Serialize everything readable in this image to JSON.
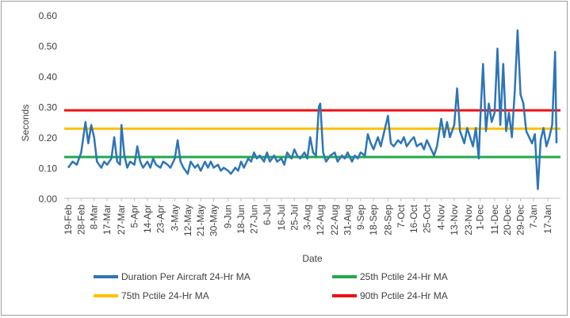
{
  "chart_data": {
    "type": "line",
    "xlabel": "Date",
    "ylabel": "Seconds",
    "ylim": [
      0,
      0.6
    ],
    "yticks": [
      "0.00",
      "0.10",
      "0.20",
      "0.30",
      "0.40",
      "0.50",
      "0.60"
    ],
    "xticks": [
      "19-Feb",
      "28-Feb",
      "8-Mar",
      "17-Mar",
      "27-Mar",
      "5-Apr",
      "14-Apr",
      "23-Apr",
      "3-May",
      "12-May",
      "21-May",
      "30-May",
      "9-Jun",
      "18-Jun",
      "27-Jun",
      "6-Jul",
      "16-Jul",
      "25-Jul",
      "3-Aug",
      "12-Aug",
      "22-Aug",
      "31-Aug",
      "9-Sep",
      "18-Sep",
      "28-Sep",
      "7-Oct",
      "16-Oct",
      "25-Oct",
      "4-Nov",
      "13-Nov",
      "23-Nov",
      "1-Dec",
      "11-Dec",
      "20-Dec",
      "29-Dec",
      "7-Jan",
      "17-Jan"
    ],
    "grid": false,
    "legend_position": "bottom",
    "series": [
      {
        "name": "Duration Per Aircraft 24-Hr MA",
        "color": "#2e75b6",
        "points": [
          [
            "19-Feb",
            0.1
          ],
          [
            "22-Feb",
            0.12
          ],
          [
            "25-Feb",
            0.11
          ],
          [
            "28-Feb",
            0.15
          ],
          [
            "2-Mar",
            0.25
          ],
          [
            "4-Mar",
            0.18
          ],
          [
            "6-Mar",
            0.24
          ],
          [
            "8-Mar",
            0.2
          ],
          [
            "10-Mar",
            0.12
          ],
          [
            "13-Mar",
            0.1
          ],
          [
            "15-Mar",
            0.12
          ],
          [
            "17-Mar",
            0.11
          ],
          [
            "20-Mar",
            0.13
          ],
          [
            "22-Mar",
            0.2
          ],
          [
            "24-Mar",
            0.12
          ],
          [
            "26-Mar",
            0.11
          ],
          [
            "27-Mar",
            0.24
          ],
          [
            "29-Mar",
            0.14
          ],
          [
            "31-Mar",
            0.1
          ],
          [
            "2-Apr",
            0.12
          ],
          [
            "5-Apr",
            0.11
          ],
          [
            "7-Apr",
            0.17
          ],
          [
            "9-Apr",
            0.12
          ],
          [
            "11-Apr",
            0.1
          ],
          [
            "14-Apr",
            0.12
          ],
          [
            "16-Apr",
            0.1
          ],
          [
            "18-Apr",
            0.13
          ],
          [
            "20-Apr",
            0.11
          ],
          [
            "23-Apr",
            0.1
          ],
          [
            "25-Apr",
            0.12
          ],
          [
            "28-Apr",
            0.11
          ],
          [
            "30-Apr",
            0.1
          ],
          [
            "3-May",
            0.13
          ],
          [
            "5-May",
            0.19
          ],
          [
            "7-May",
            0.12
          ],
          [
            "9-May",
            0.1
          ],
          [
            "12-May",
            0.08
          ],
          [
            "14-May",
            0.12
          ],
          [
            "17-May",
            0.1
          ],
          [
            "19-May",
            0.11
          ],
          [
            "21-May",
            0.09
          ],
          [
            "24-May",
            0.12
          ],
          [
            "26-May",
            0.1
          ],
          [
            "28-May",
            0.12
          ],
          [
            "30-May",
            0.1
          ],
          [
            "2-Jun",
            0.11
          ],
          [
            "4-Jun",
            0.09
          ],
          [
            "6-Jun",
            0.1
          ],
          [
            "9-Jun",
            0.09
          ],
          [
            "11-Jun",
            0.08
          ],
          [
            "14-Jun",
            0.1
          ],
          [
            "16-Jun",
            0.09
          ],
          [
            "18-Jun",
            0.12
          ],
          [
            "20-Jun",
            0.1
          ],
          [
            "23-Jun",
            0.13
          ],
          [
            "25-Jun",
            0.12
          ],
          [
            "27-Jun",
            0.15
          ],
          [
            "29-Jun",
            0.13
          ],
          [
            "1-Jul",
            0.14
          ],
          [
            "4-Jul",
            0.12
          ],
          [
            "6-Jul",
            0.15
          ],
          [
            "8-Jul",
            0.12
          ],
          [
            "11-Jul",
            0.14
          ],
          [
            "13-Jul",
            0.12
          ],
          [
            "16-Jul",
            0.13
          ],
          [
            "18-Jul",
            0.11
          ],
          [
            "20-Jul",
            0.15
          ],
          [
            "23-Jul",
            0.13
          ],
          [
            "25-Jul",
            0.16
          ],
          [
            "27-Jul",
            0.14
          ],
          [
            "29-Jul",
            0.13
          ],
          [
            "1-Aug",
            0.15
          ],
          [
            "3-Aug",
            0.13
          ],
          [
            "5-Aug",
            0.2
          ],
          [
            "7-Aug",
            0.15
          ],
          [
            "9-Aug",
            0.14
          ],
          [
            "11-Aug",
            0.3
          ],
          [
            "12-Aug",
            0.31
          ],
          [
            "14-Aug",
            0.15
          ],
          [
            "16-Aug",
            0.12
          ],
          [
            "19-Aug",
            0.14
          ],
          [
            "22-Aug",
            0.15
          ],
          [
            "24-Aug",
            0.12
          ],
          [
            "27-Aug",
            0.14
          ],
          [
            "29-Aug",
            0.13
          ],
          [
            "31-Aug",
            0.15
          ],
          [
            "3-Sep",
            0.12
          ],
          [
            "5-Sep",
            0.14
          ],
          [
            "7-Sep",
            0.13
          ],
          [
            "9-Sep",
            0.15
          ],
          [
            "12-Sep",
            0.14
          ],
          [
            "14-Sep",
            0.21
          ],
          [
            "16-Sep",
            0.18
          ],
          [
            "18-Sep",
            0.16
          ],
          [
            "21-Sep",
            0.2
          ],
          [
            "23-Sep",
            0.17
          ],
          [
            "25-Sep",
            0.21
          ],
          [
            "28-Sep",
            0.27
          ],
          [
            "30-Sep",
            0.18
          ],
          [
            "2-Oct",
            0.17
          ],
          [
            "5-Oct",
            0.19
          ],
          [
            "7-Oct",
            0.18
          ],
          [
            "9-Oct",
            0.2
          ],
          [
            "11-Oct",
            0.17
          ],
          [
            "14-Oct",
            0.19
          ],
          [
            "16-Oct",
            0.2
          ],
          [
            "18-Oct",
            0.17
          ],
          [
            "21-Oct",
            0.18
          ],
          [
            "23-Oct",
            0.16
          ],
          [
            "25-Oct",
            0.19
          ],
          [
            "27-Oct",
            0.17
          ],
          [
            "30-Oct",
            0.14
          ],
          [
            "1-Nov",
            0.17
          ],
          [
            "4-Nov",
            0.26
          ],
          [
            "6-Nov",
            0.2
          ],
          [
            "8-Nov",
            0.25
          ],
          [
            "10-Nov",
            0.2
          ],
          [
            "13-Nov",
            0.24
          ],
          [
            "15-Nov",
            0.36
          ],
          [
            "17-Nov",
            0.22
          ],
          [
            "20-Nov",
            0.18
          ],
          [
            "22-Nov",
            0.23
          ],
          [
            "24-Nov",
            0.2
          ],
          [
            "26-Nov",
            0.17
          ],
          [
            "28-Nov",
            0.23
          ],
          [
            "30-Nov",
            0.13
          ],
          [
            "1-Dec",
            0.25
          ],
          [
            "3-Dec",
            0.44
          ],
          [
            "5-Dec",
            0.22
          ],
          [
            "7-Dec",
            0.31
          ],
          [
            "9-Dec",
            0.25
          ],
          [
            "11-Dec",
            0.28
          ],
          [
            "13-Dec",
            0.49
          ],
          [
            "15-Dec",
            0.24
          ],
          [
            "17-Dec",
            0.44
          ],
          [
            "19-Dec",
            0.22
          ],
          [
            "21-Dec",
            0.28
          ],
          [
            "23-Dec",
            0.2
          ],
          [
            "25-Dec",
            0.35
          ],
          [
            "27-Dec",
            0.55
          ],
          [
            "29-Dec",
            0.34
          ],
          [
            "31-Dec",
            0.31
          ],
          [
            "2-Jan",
            0.22
          ],
          [
            "4-Jan",
            0.2
          ],
          [
            "6-Jan",
            0.18
          ],
          [
            "8-Jan",
            0.21
          ],
          [
            "10-Jan",
            0.03
          ],
          [
            "12-Jan",
            0.19
          ],
          [
            "14-Jan",
            0.23
          ],
          [
            "16-Jan",
            0.17
          ],
          [
            "18-Jan",
            0.2
          ],
          [
            "20-Jan",
            0.24
          ],
          [
            "22-Jan",
            0.48
          ],
          [
            "23-Jan",
            0.18
          ]
        ]
      },
      {
        "name": "25th Pctile 24-Hr MA",
        "color": "#22a84a",
        "constant": 0.135
      },
      {
        "name": "75th Pctile 24-Hr MA",
        "color": "#ffc000",
        "constant": 0.228
      },
      {
        "name": "90th Pctile 24-Hr MA",
        "color": "#ee1111",
        "constant": 0.288
      }
    ]
  }
}
